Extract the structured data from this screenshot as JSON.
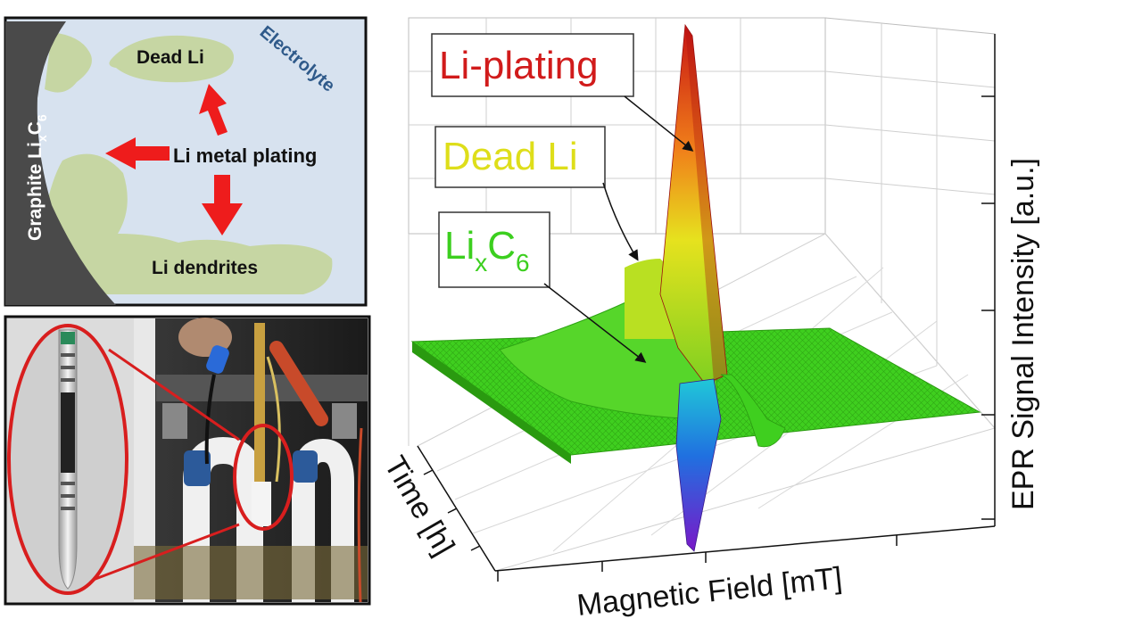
{
  "schematic": {
    "graphite_label_main": "Graphite Li",
    "graphite_label_sub": "x",
    "graphite_label_c": "C",
    "graphite_label_sub2": "6",
    "dead_li": "Dead Li",
    "electrolyte": "Electrolyte",
    "plating": "Li metal plating",
    "dendrites": "Li dendrites"
  },
  "epr_plot": {
    "callout_plating": "Li-plating",
    "callout_dead": "Dead Li",
    "callout_lixc6_main": "Li",
    "callout_lixc6_sub": "x",
    "callout_lixc6_c": "C",
    "callout_lixc6_sub2": "6",
    "axis_x": "Magnetic Field [mT]",
    "axis_y": "Time [h]",
    "axis_z": "EPR Signal Intensity [a.u.]"
  },
  "colors": {
    "plating_label": "#d11b1b",
    "dead_label": "#dede1a",
    "lixc6_label": "#3ccf1f",
    "surface_base": "#3fcf1f",
    "arrow_red": "#ee1c1c",
    "electrolyte_bg": "#d7e2ef",
    "deposit": "#c6d6a3",
    "graphite": "#4a4a4a",
    "electrolyte_text": "#2f5a8a"
  }
}
